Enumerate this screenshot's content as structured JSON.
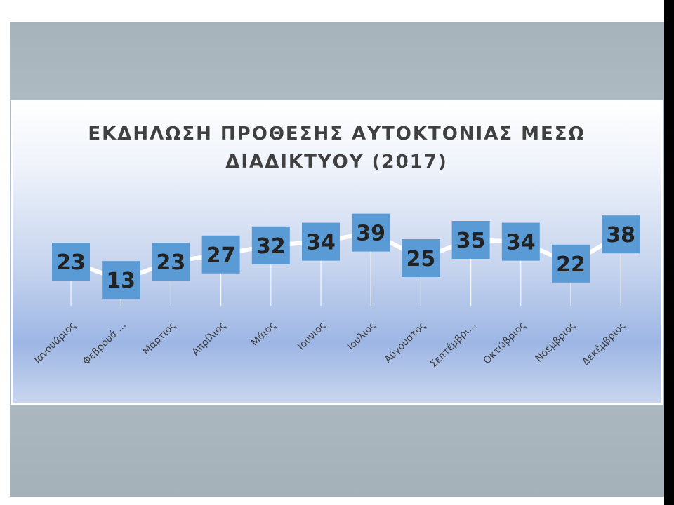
{
  "chart_data": {
    "type": "line",
    "title_lines": [
      "ΕΚΔΗΛΩΣΗ ΠΡΟΘΕΣΗΣ ΑΥΤΟΚΤΟΝΙΑΣ ΜΕΣΩ",
      "ΔΙΑΔΙΚΤΥΟΥ (2017)"
    ],
    "categories": [
      "Ιανουάριος",
      "Φεβρουά ...",
      "Μάρτιος",
      "Απρίλιος",
      "Μάιος",
      "Ιούνιος",
      "Ιούλιος",
      "Αύγουστος",
      "Σεπτέμβρι...",
      "Οκτώβριος",
      "Νοέμβριος",
      "Δεκέμβριος"
    ],
    "values": [
      23,
      13,
      23,
      27,
      32,
      34,
      39,
      25,
      35,
      34,
      22,
      38
    ],
    "xlabel": "",
    "ylabel": "",
    "ylim": [
      0,
      45
    ],
    "data_labels": true,
    "grid": false,
    "legend": "none",
    "colors": {
      "line": "#ffffff",
      "label_box": "#5b9bd5",
      "label_text": "#222222",
      "drop_lines": "#ffffff"
    }
  }
}
